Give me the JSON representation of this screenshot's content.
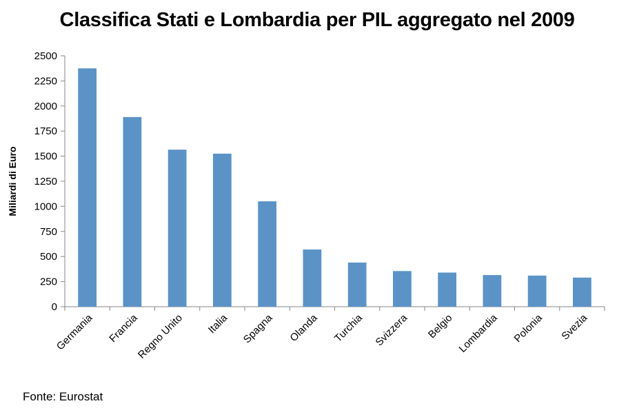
{
  "chart_data": {
    "type": "bar",
    "title": "Classifica Stati e Lombardia per PIL aggregato nel 2009",
    "xlabel": "",
    "ylabel": "Miliardi di Euro",
    "categories": [
      "Germania",
      "Francia",
      "Regno Unito",
      "Italia",
      "Spagna",
      "Olanda",
      "Turchia",
      "Svizzera",
      "Belgio",
      "Lombardia",
      "Polonia",
      "Svezia"
    ],
    "values": [
      2375,
      1890,
      1565,
      1525,
      1050,
      570,
      440,
      355,
      340,
      315,
      310,
      290
    ],
    "ylim": [
      0,
      2500
    ],
    "yticks": [
      "0",
      "250",
      "500",
      "750",
      "1000",
      "1250",
      "1500",
      "1750",
      "2000",
      "2250",
      "2500"
    ],
    "grid": false,
    "legend": "none",
    "bar_color": "#5B93C7"
  },
  "source_note": "Fonte: Eurostat"
}
